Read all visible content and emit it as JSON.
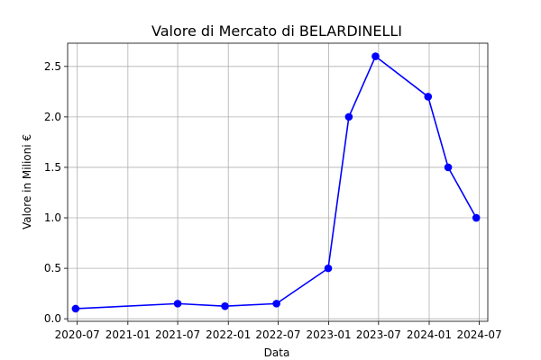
{
  "chart_data": {
    "type": "line",
    "title": "Valore di Mercato di BELARDINELLI",
    "xlabel": "Data",
    "ylabel": "Valore in Milioni €",
    "x_ticks": [
      {
        "date": "2020-07-01",
        "label": "2020-07"
      },
      {
        "date": "2021-01-01",
        "label": "2021-01"
      },
      {
        "date": "2021-07-01",
        "label": "2021-07"
      },
      {
        "date": "2022-01-01",
        "label": "2022-01"
      },
      {
        "date": "2022-07-01",
        "label": "2022-07"
      },
      {
        "date": "2023-01-01",
        "label": "2023-01"
      },
      {
        "date": "2023-07-01",
        "label": "2023-07"
      },
      {
        "date": "2024-01-01",
        "label": "2024-01"
      },
      {
        "date": "2024-07-01",
        "label": "2024-07"
      }
    ],
    "y_ticks": [
      {
        "value": 0.0,
        "label": "0.0"
      },
      {
        "value": 0.5,
        "label": "0.5"
      },
      {
        "value": 1.0,
        "label": "1.0"
      },
      {
        "value": 1.5,
        "label": "1.5"
      },
      {
        "value": 2.0,
        "label": "2.0"
      },
      {
        "value": 2.5,
        "label": "2.5"
      }
    ],
    "xlim": [
      "2020-05-27",
      "2024-08-01"
    ],
    "ylim": [
      -0.025,
      2.73
    ],
    "grid": true,
    "series": [
      {
        "color": "#0000ff",
        "points": [
          {
            "x": "2020-06-25",
            "y": 0.1
          },
          {
            "x": "2021-07-01",
            "y": 0.15
          },
          {
            "x": "2021-12-20",
            "y": 0.125
          },
          {
            "x": "2022-06-25",
            "y": 0.15
          },
          {
            "x": "2022-12-30",
            "y": 0.5
          },
          {
            "x": "2023-03-15",
            "y": 2.0
          },
          {
            "x": "2023-06-20",
            "y": 2.6
          },
          {
            "x": "2023-12-28",
            "y": 2.2
          },
          {
            "x": "2024-03-10",
            "y": 1.5
          },
          {
            "x": "2024-06-20",
            "y": 1.0
          }
        ]
      }
    ]
  }
}
